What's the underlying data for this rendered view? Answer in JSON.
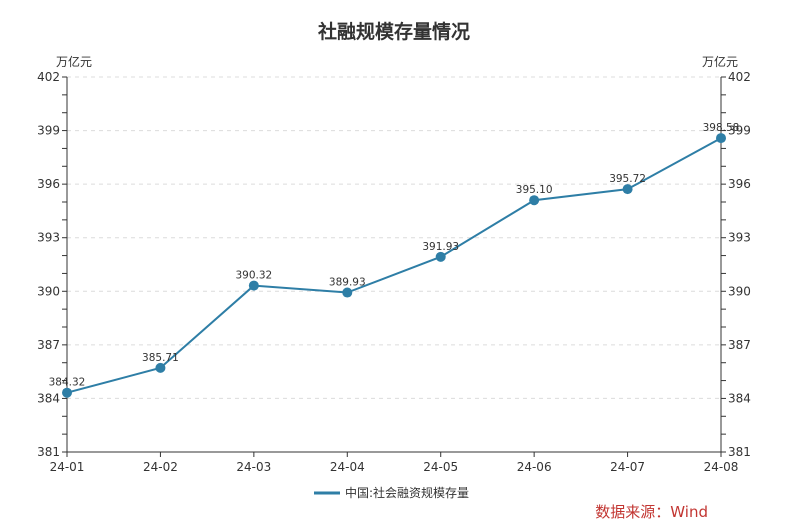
{
  "chart_data": {
    "type": "line",
    "title": "社融规模存量情况",
    "xlabel": "",
    "ylabel": "万亿元",
    "y2label": "万亿元",
    "categories": [
      "24-01",
      "24-02",
      "24-03",
      "24-04",
      "24-05",
      "24-06",
      "24-07",
      "24-08"
    ],
    "series": [
      {
        "name": "中国:社会融资规模存量",
        "values": [
          384.32,
          385.71,
          390.32,
          389.93,
          391.93,
          395.1,
          395.72,
          398.58
        ],
        "labels": [
          "384.32",
          "385.71",
          "390.32",
          "389.93",
          "391.93",
          "395.10",
          "395.72",
          "398.58"
        ],
        "color": "#2e7ea6"
      }
    ],
    "ylim": [
      381,
      402
    ],
    "y_ticks": [
      381,
      384,
      387,
      390,
      393,
      396,
      399,
      402
    ],
    "y_tick_labels": [
      "381",
      "384",
      "387",
      "390",
      "393",
      "396",
      "399",
      "402"
    ],
    "y2_ticks": [
      381,
      384,
      387,
      390,
      393,
      396,
      399,
      402
    ],
    "grid": true,
    "legend_position": "bottom"
  },
  "source_note": "数据来源：Wind"
}
